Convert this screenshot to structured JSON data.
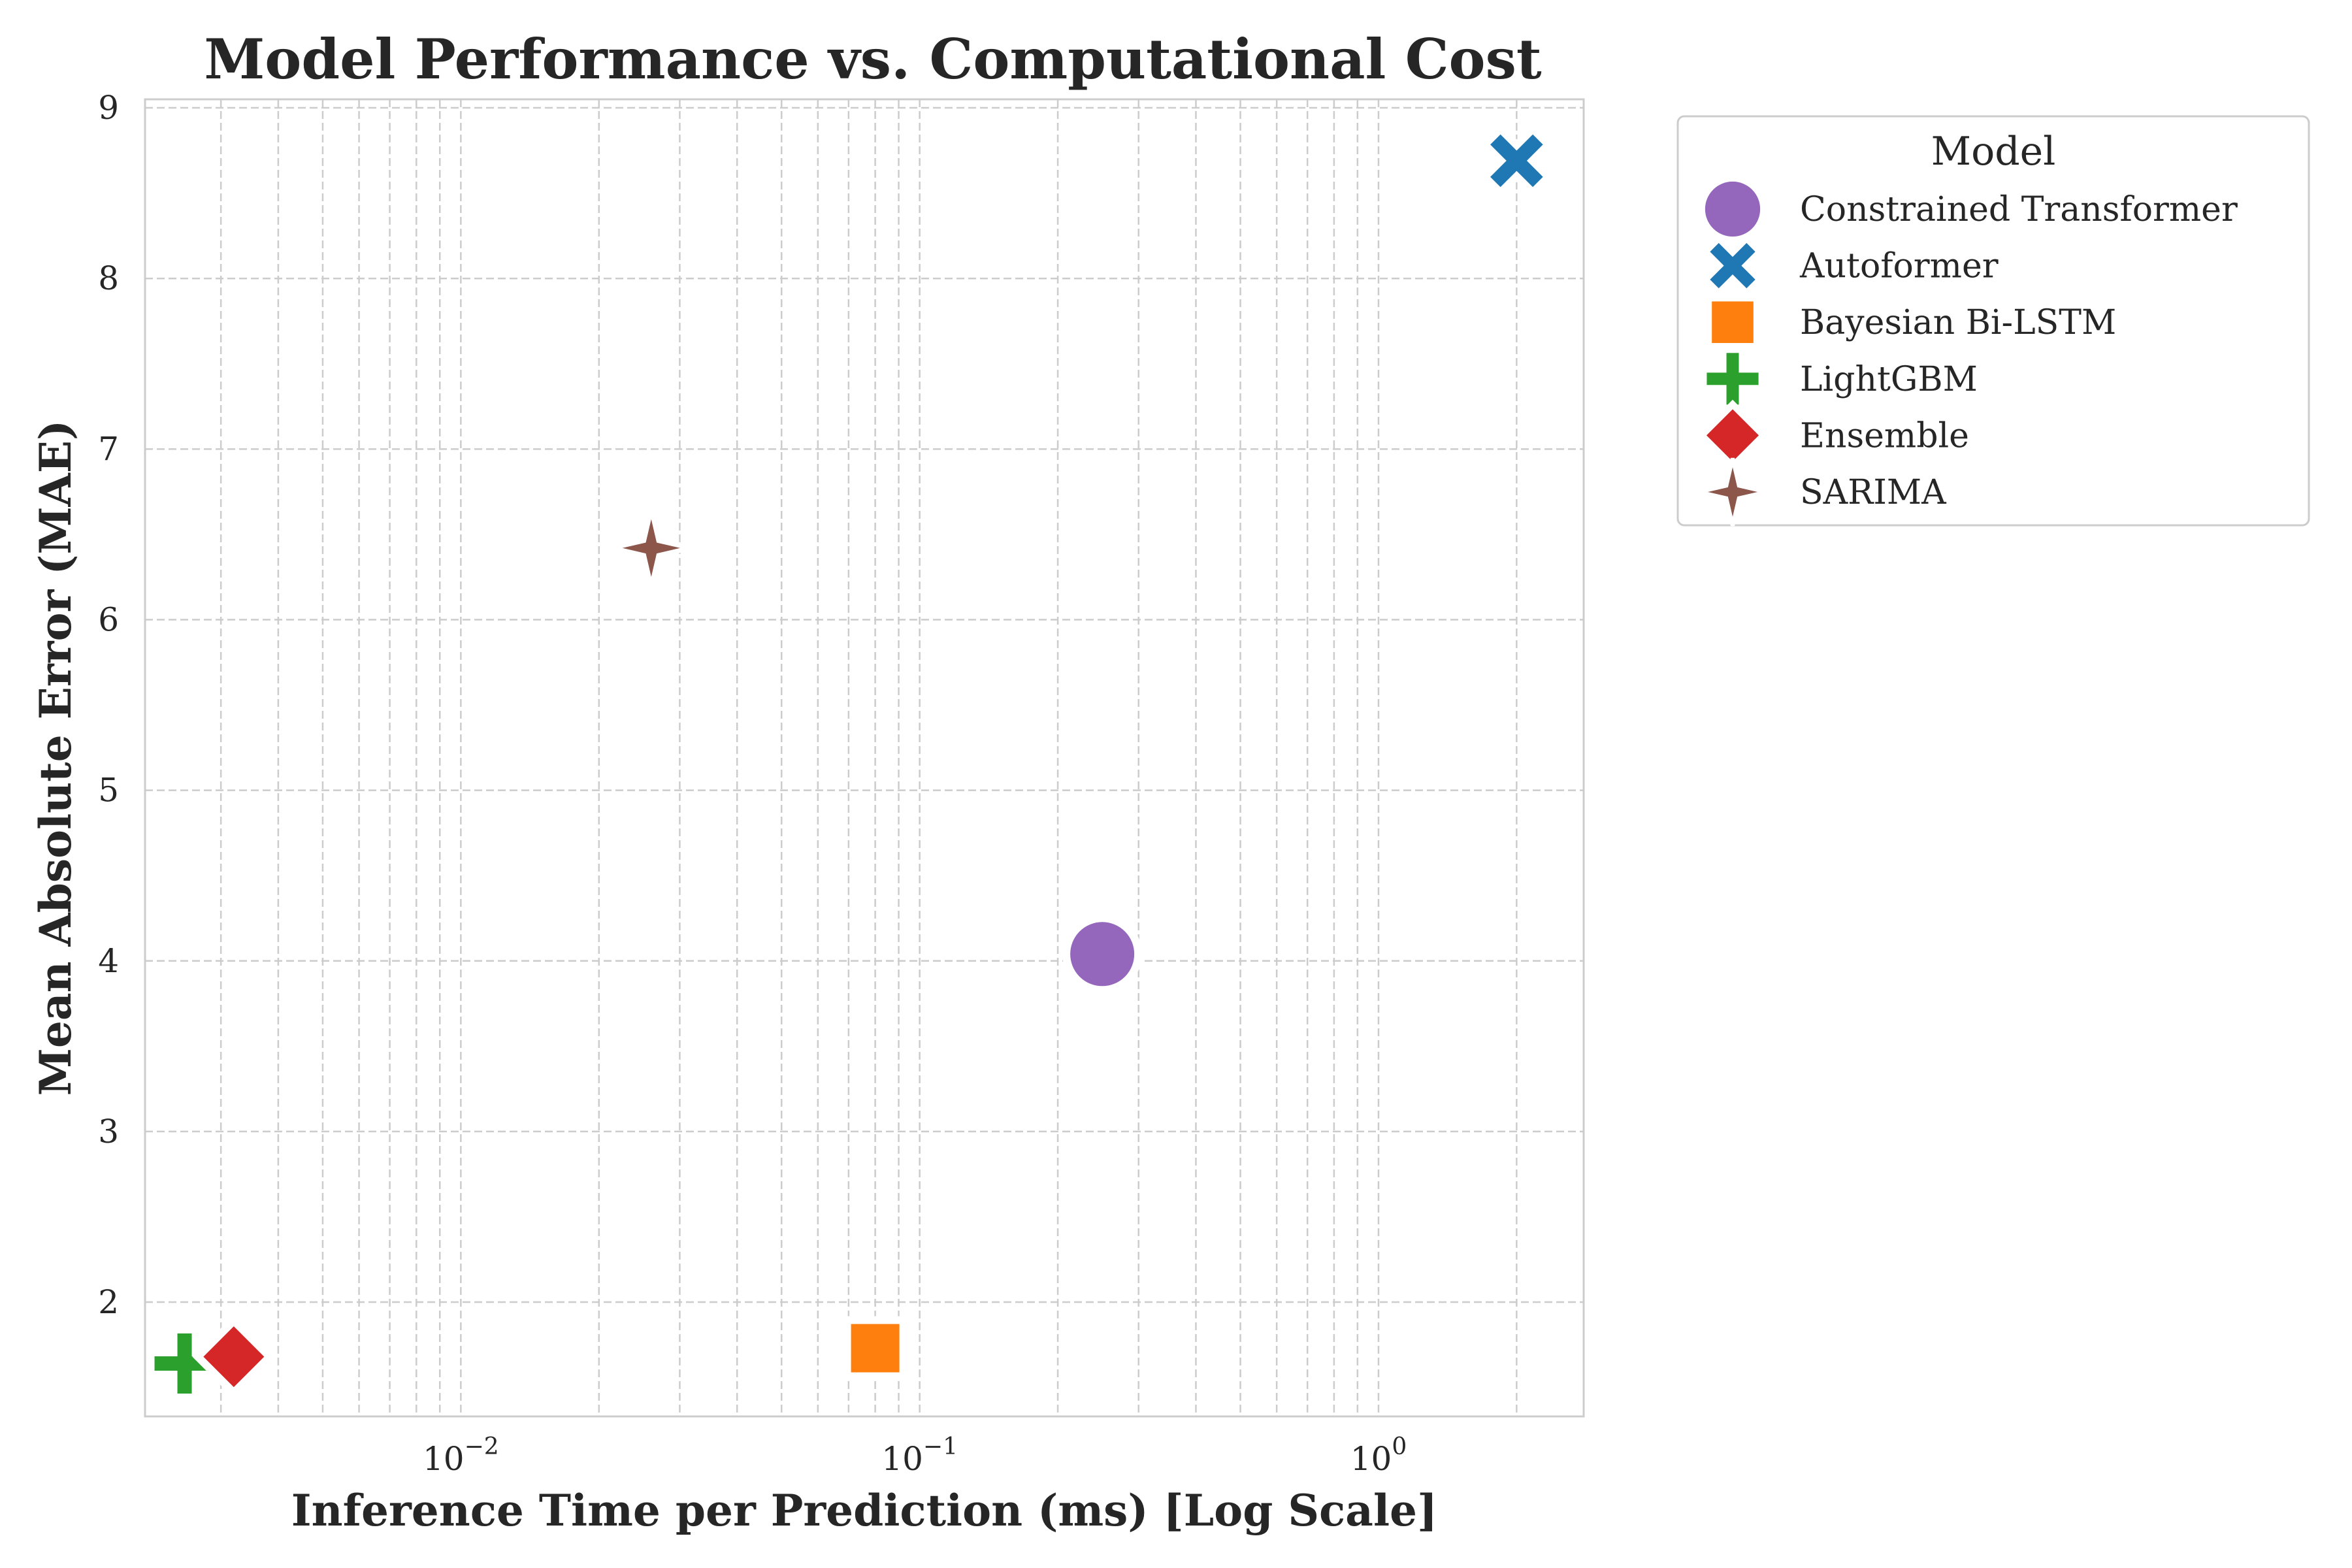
{
  "chart_data": {
    "type": "scatter",
    "title": "Model Performance vs. Computational Cost",
    "xlabel": "Inference Time per Prediction (ms) [Log Scale]",
    "ylabel": "Mean Absolute Error (MAE)",
    "x_scale": "log",
    "xlim": [
      0.00205,
      2.8
    ],
    "ylim": [
      1.33,
      9.05
    ],
    "x_ticks": [
      {
        "value": 0.01,
        "base": "10",
        "exp": "−2"
      },
      {
        "value": 0.1,
        "base": "10",
        "exp": "−1"
      },
      {
        "value": 1,
        "base": "10",
        "exp": "0"
      }
    ],
    "y_ticks": [
      2,
      3,
      4,
      5,
      6,
      7,
      8,
      9
    ],
    "grid": true,
    "legend": {
      "title": "Model",
      "placement": "outside-right"
    },
    "series": [
      {
        "name": "Constrained Transformer",
        "marker": "circle",
        "color": "#9467bd",
        "x": 0.25,
        "y": 4.04
      },
      {
        "name": "Autoformer",
        "marker": "x",
        "color": "#1f77b4",
        "x": 2.0,
        "y": 8.69
      },
      {
        "name": "Bayesian Bi-LSTM",
        "marker": "square",
        "color": "#ff7f0e",
        "x": 0.08,
        "y": 1.73
      },
      {
        "name": "LightGBM",
        "marker": "plus",
        "color": "#2ca02c",
        "x": 0.0025,
        "y": 1.64
      },
      {
        "name": "Ensemble",
        "marker": "diamond",
        "color": "#d62728",
        "x": 0.0032,
        "y": 1.68
      },
      {
        "name": "SARIMA",
        "marker": "star4",
        "color": "#8c564b",
        "x": 0.026,
        "y": 6.42
      }
    ]
  }
}
